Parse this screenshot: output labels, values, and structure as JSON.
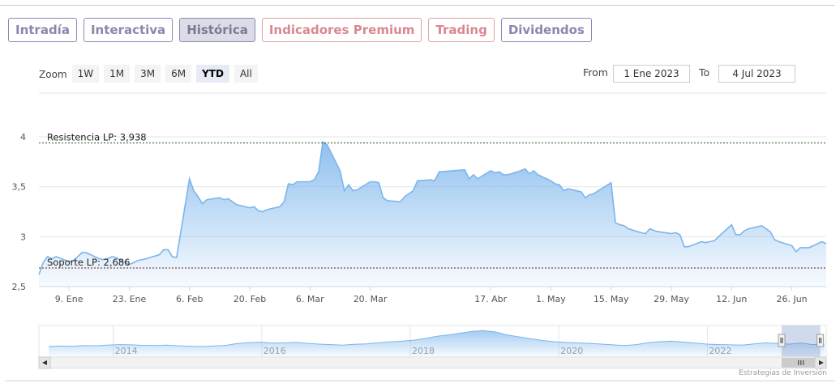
{
  "tabs": [
    {
      "label": "Intradía",
      "style": "normal"
    },
    {
      "label": "Interactiva",
      "style": "normal"
    },
    {
      "label": "Histórica",
      "style": "active"
    },
    {
      "label": "Indicadores Premium",
      "style": "premium"
    },
    {
      "label": "Trading",
      "style": "premium"
    },
    {
      "label": "Dividendos",
      "style": "normal"
    }
  ],
  "zoom": {
    "label": "Zoom",
    "buttons": [
      "1W",
      "1M",
      "3M",
      "6M",
      "YTD",
      "All"
    ],
    "selected": "YTD"
  },
  "range": {
    "from_label": "From",
    "from_value": "1 Ene 2023",
    "to_label": "To",
    "to_value": "4 Jul 2023"
  },
  "chart_data": {
    "type": "area",
    "ylim": [
      2.5,
      4.0
    ],
    "yticks": [
      "4",
      "3,5",
      "3",
      "2,5"
    ],
    "ytick_values": [
      4,
      3.5,
      3,
      2.5
    ],
    "xlim": [
      "2023-01-02",
      "2023-07-04"
    ],
    "xticks": [
      {
        "label": "9. Ene",
        "date": "2023-01-09"
      },
      {
        "label": "23. Ene",
        "date": "2023-01-23"
      },
      {
        "label": "6. Feb",
        "date": "2023-02-06"
      },
      {
        "label": "20. Feb",
        "date": "2023-02-20"
      },
      {
        "label": "6. Mar",
        "date": "2023-03-06"
      },
      {
        "label": "20. Mar",
        "date": "2023-03-20"
      },
      {
        "label": "17. Abr",
        "date": "2023-04-17"
      },
      {
        "label": "1. May",
        "date": "2023-05-01"
      },
      {
        "label": "15. May",
        "date": "2023-05-15"
      },
      {
        "label": "29. May",
        "date": "2023-05-29"
      },
      {
        "label": "12. Jun",
        "date": "2023-06-12"
      },
      {
        "label": "26. Jun",
        "date": "2023-06-26"
      }
    ],
    "series": [
      {
        "x": [
          "2023-01-02",
          "2023-01-03",
          "2023-01-04",
          "2023-01-05",
          "2023-01-06",
          "2023-01-09",
          "2023-01-10",
          "2023-01-11",
          "2023-01-12",
          "2023-01-13",
          "2023-01-16",
          "2023-01-17",
          "2023-01-18",
          "2023-01-19",
          "2023-01-20",
          "2023-01-23",
          "2023-01-24",
          "2023-01-25",
          "2023-01-26",
          "2023-01-27",
          "2023-01-30",
          "2023-01-31",
          "2023-02-01",
          "2023-02-02",
          "2023-02-03",
          "2023-02-06",
          "2023-02-07",
          "2023-02-08",
          "2023-02-09",
          "2023-02-10",
          "2023-02-13",
          "2023-02-14",
          "2023-02-15",
          "2023-02-16",
          "2023-02-17",
          "2023-02-20",
          "2023-02-21",
          "2023-02-22",
          "2023-02-23",
          "2023-02-24",
          "2023-02-27",
          "2023-02-28",
          "2023-03-01",
          "2023-03-02",
          "2023-03-03",
          "2023-03-06",
          "2023-03-07",
          "2023-03-08",
          "2023-03-09",
          "2023-03-10",
          "2023-03-13",
          "2023-03-14",
          "2023-03-15",
          "2023-03-16",
          "2023-03-17",
          "2023-03-20",
          "2023-03-21",
          "2023-03-22",
          "2023-03-23",
          "2023-03-24",
          "2023-03-27",
          "2023-03-28",
          "2023-03-29",
          "2023-03-30",
          "2023-03-31",
          "2023-04-03",
          "2023-04-04",
          "2023-04-05",
          "2023-04-11",
          "2023-04-12",
          "2023-04-13",
          "2023-04-14",
          "2023-04-17",
          "2023-04-18",
          "2023-04-19",
          "2023-04-20",
          "2023-04-21",
          "2023-04-24",
          "2023-04-25",
          "2023-04-26",
          "2023-04-27",
          "2023-04-28",
          "2023-05-01",
          "2023-05-02",
          "2023-05-03",
          "2023-05-04",
          "2023-05-05",
          "2023-05-08",
          "2023-05-09",
          "2023-05-10",
          "2023-05-11",
          "2023-05-12",
          "2023-05-15",
          "2023-05-16",
          "2023-05-17",
          "2023-05-18",
          "2023-05-19",
          "2023-05-22",
          "2023-05-23",
          "2023-05-24",
          "2023-05-25",
          "2023-05-26",
          "2023-05-29",
          "2023-05-30",
          "2023-05-31",
          "2023-06-01",
          "2023-06-02",
          "2023-06-05",
          "2023-06-06",
          "2023-06-07",
          "2023-06-08",
          "2023-06-09",
          "2023-06-12",
          "2023-06-13",
          "2023-06-14",
          "2023-06-15",
          "2023-06-16",
          "2023-06-19",
          "2023-06-20",
          "2023-06-21",
          "2023-06-22",
          "2023-06-23",
          "2023-06-26",
          "2023-06-27",
          "2023-06-28",
          "2023-06-29",
          "2023-06-30",
          "2023-07-03",
          "2023-07-04"
        ],
        "values": [
          2.62,
          2.74,
          2.8,
          2.78,
          2.8,
          2.75,
          2.76,
          2.8,
          2.84,
          2.84,
          2.78,
          2.77,
          2.78,
          2.8,
          2.79,
          2.72,
          2.74,
          2.76,
          2.77,
          2.78,
          2.82,
          2.87,
          2.87,
          2.8,
          2.79,
          3.58,
          3.46,
          3.4,
          3.33,
          3.37,
          3.39,
          3.37,
          3.38,
          3.35,
          3.32,
          3.29,
          3.3,
          3.26,
          3.25,
          3.27,
          3.3,
          3.35,
          3.53,
          3.52,
          3.55,
          3.55,
          3.57,
          3.65,
          3.95,
          3.92,
          3.66,
          3.46,
          3.52,
          3.46,
          3.47,
          3.55,
          3.55,
          3.54,
          3.39,
          3.36,
          3.35,
          3.4,
          3.43,
          3.46,
          3.56,
          3.57,
          3.56,
          3.65,
          3.67,
          3.58,
          3.62,
          3.58,
          3.66,
          3.64,
          3.65,
          3.62,
          3.62,
          3.66,
          3.68,
          3.63,
          3.66,
          3.62,
          3.56,
          3.53,
          3.52,
          3.46,
          3.48,
          3.45,
          3.39,
          3.42,
          3.43,
          3.46,
          3.54,
          3.14,
          3.12,
          3.11,
          3.08,
          3.04,
          3.03,
          3.08,
          3.06,
          3.05,
          3.03,
          3.04,
          3.02,
          2.9,
          2.9,
          2.95,
          2.94,
          2.95,
          2.96,
          3.0,
          3.12,
          3.02,
          3.02,
          3.06,
          3.08,
          3.11,
          3.08,
          3.05,
          2.97,
          2.95,
          2.91,
          2.85,
          2.89,
          2.89,
          2.89,
          2.95,
          2.93
        ]
      }
    ],
    "plot_lines": [
      {
        "label": "Resistencia LP: 3,938",
        "value": 3.938,
        "color": "#1a5c1a"
      },
      {
        "label": "Soporte LP: 2,686",
        "value": 2.686,
        "color": "#6e1a1a"
      }
    ],
    "line_color": "#7cb5ec",
    "grid": true,
    "navigator": {
      "year_labels": [
        "2014",
        "2016",
        "2018",
        "2020",
        "2022"
      ],
      "year_positions": [
        2014,
        2016,
        2018,
        2020,
        2022
      ],
      "range_years": [
        2013.0,
        2023.6
      ],
      "profile": [
        0.3,
        0.32,
        0.31,
        0.34,
        0.33,
        0.36,
        0.38,
        0.37,
        0.35,
        0.34,
        0.36,
        0.33,
        0.31,
        0.3,
        0.32,
        0.34,
        0.42,
        0.46,
        0.48,
        0.44,
        0.45,
        0.47,
        0.43,
        0.4,
        0.38,
        0.36,
        0.39,
        0.41,
        0.45,
        0.49,
        0.52,
        0.56,
        0.63,
        0.72,
        0.78,
        0.85,
        0.92,
        0.96,
        0.9,
        0.78,
        0.7,
        0.62,
        0.55,
        0.5,
        0.47,
        0.45,
        0.43,
        0.4,
        0.37,
        0.34,
        0.38,
        0.46,
        0.5,
        0.52,
        0.48,
        0.44,
        0.4,
        0.38,
        0.37,
        0.36,
        0.41,
        0.45,
        0.43,
        0.4,
        0.44,
        0.38,
        0.4
      ]
    }
  },
  "credit": "Estrategias de Inversión"
}
